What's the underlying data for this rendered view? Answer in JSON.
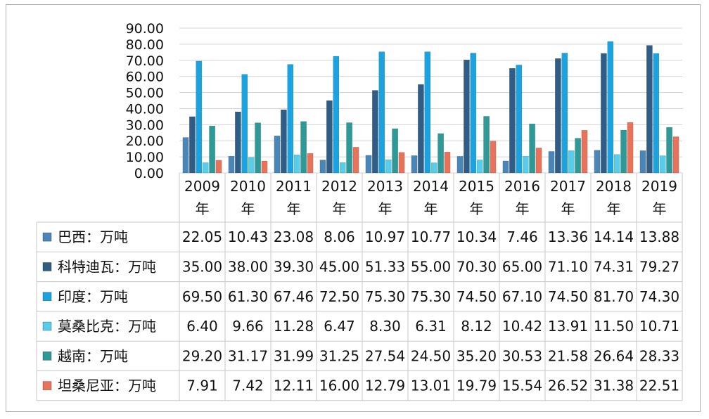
{
  "chart_data": {
    "type": "bar",
    "title": "",
    "xlabel": "",
    "ylabel": "",
    "ylim": [
      0,
      90
    ],
    "yticks": [
      "0.00",
      "10.00",
      "20.00",
      "30.00",
      "40.00",
      "50.00",
      "60.00",
      "70.00",
      "80.00",
      "90.00"
    ],
    "categories": [
      "2009",
      "2010",
      "2011",
      "2012",
      "2013",
      "2014",
      "2015",
      "2016",
      "2017",
      "2018",
      "2019"
    ],
    "category_suffix": "年",
    "legend_position": "bottom-table",
    "series": [
      {
        "name": "巴西：万吨",
        "color": "#4a86b8",
        "values": [
          22.05,
          10.43,
          23.08,
          8.06,
          10.97,
          10.77,
          10.34,
          7.46,
          13.36,
          14.14,
          13.88
        ],
        "labels": [
          "22.05",
          "10.43",
          "23.08",
          "8.06",
          "10.97",
          "10.77",
          "10.34",
          "7.46",
          "13.36",
          "14.14",
          "13.88"
        ]
      },
      {
        "name": "科特迪瓦：万吨",
        "color": "#2f5d86",
        "values": [
          35.0,
          38.0,
          39.3,
          45.0,
          51.33,
          55.0,
          70.3,
          65.0,
          71.1,
          74.31,
          79.27
        ],
        "labels": [
          "35.00",
          "38.00",
          "39.30",
          "45.00",
          "51.33",
          "55.00",
          "70.30",
          "65.00",
          "71.10",
          "74.31",
          "79.27"
        ]
      },
      {
        "name": "印度：万吨",
        "color": "#1aa3e0",
        "values": [
          69.5,
          61.3,
          67.46,
          72.5,
          75.3,
          75.3,
          74.5,
          67.1,
          74.5,
          81.7,
          74.3
        ],
        "labels": [
          "69.50",
          "61.30",
          "67.46",
          "72.50",
          "75.30",
          "75.30",
          "74.50",
          "67.10",
          "74.50",
          "81.70",
          "74.30"
        ]
      },
      {
        "name": "莫桑比克：万吨",
        "color": "#58cdea",
        "values": [
          6.4,
          9.66,
          11.28,
          6.47,
          8.3,
          6.31,
          8.12,
          10.42,
          13.91,
          11.5,
          10.71
        ],
        "labels": [
          "6.40",
          "9.66",
          "11.28",
          "6.47",
          "8.30",
          "6.31",
          "8.12",
          "10.42",
          "13.91",
          "11.50",
          "10.71"
        ]
      },
      {
        "name": "越南：万吨",
        "color": "#2e9a98",
        "values": [
          29.2,
          31.17,
          31.99,
          31.25,
          27.54,
          24.5,
          35.2,
          30.53,
          21.58,
          26.64,
          28.33
        ],
        "labels": [
          "29.20",
          "31.17",
          "31.99",
          "31.25",
          "27.54",
          "24.50",
          "35.20",
          "30.53",
          "21.58",
          "26.64",
          "28.33"
        ]
      },
      {
        "name": "坦桑尼亚：万吨",
        "color": "#e8735a",
        "values": [
          7.91,
          7.42,
          12.11,
          16.0,
          12.79,
          13.01,
          19.79,
          15.54,
          26.52,
          31.38,
          22.51
        ],
        "labels": [
          "7.91",
          "7.42",
          "12.11",
          "16.00",
          "12.79",
          "13.01",
          "19.79",
          "15.54",
          "26.52",
          "31.38",
          "22.51"
        ]
      }
    ]
  }
}
